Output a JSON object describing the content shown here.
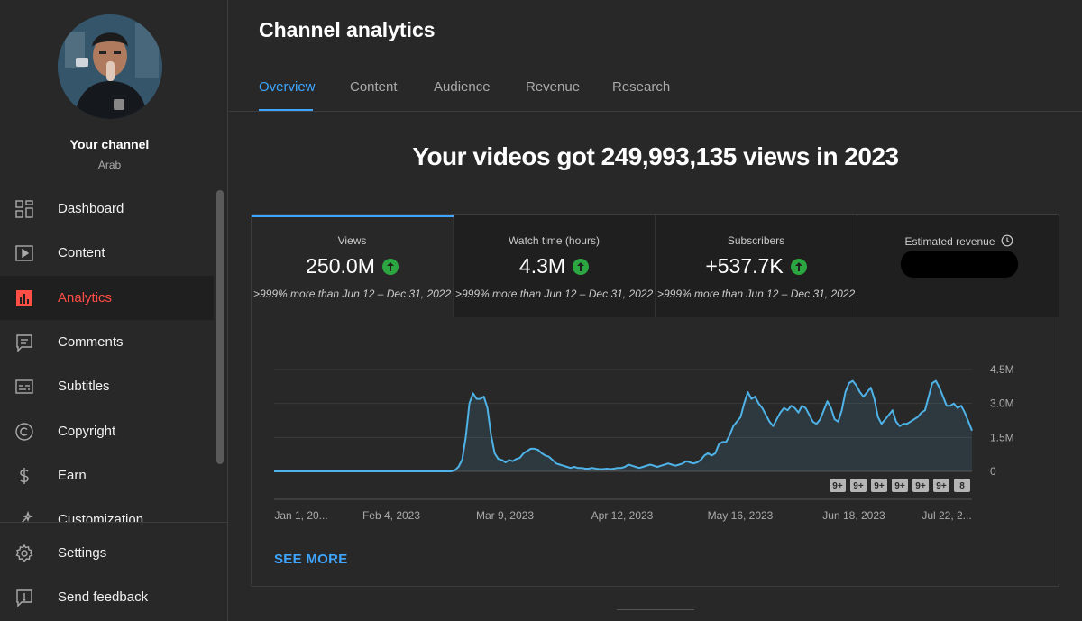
{
  "channel": {
    "name": "Your channel",
    "handle": "Arab"
  },
  "nav": {
    "items": [
      {
        "label": "Dashboard",
        "icon": "dashboard-icon"
      },
      {
        "label": "Content",
        "icon": "content-icon"
      },
      {
        "label": "Analytics",
        "icon": "analytics-icon",
        "active": true
      },
      {
        "label": "Comments",
        "icon": "comments-icon"
      },
      {
        "label": "Subtitles",
        "icon": "subtitles-icon"
      },
      {
        "label": "Copyright",
        "icon": "copyright-icon"
      },
      {
        "label": "Earn",
        "icon": "earn-icon"
      },
      {
        "label": "Customization",
        "icon": "customization-icon"
      }
    ],
    "bottom": [
      {
        "label": "Settings",
        "icon": "gear-icon"
      },
      {
        "label": "Send feedback",
        "icon": "feedback-icon"
      }
    ]
  },
  "page": {
    "title": "Channel analytics",
    "tabs": [
      "Overview",
      "Content",
      "Audience",
      "Revenue",
      "Research"
    ],
    "active_tab": "Overview",
    "headline": "Your videos got 249,993,135 views in 2023"
  },
  "metrics": [
    {
      "label": "Views",
      "value": "250.0M",
      "compare": ">999% more than Jun 12 – Dec 31, 2022",
      "trend": "up"
    },
    {
      "label": "Watch time (hours)",
      "value": "4.3M",
      "compare": ">999% more than Jun 12 – Dec 31, 2022",
      "trend": "up"
    },
    {
      "label": "Subscribers",
      "value": "+537.7K",
      "compare": ">999% more than Jun 12 – Dec 31, 2022",
      "trend": "up"
    },
    {
      "label": "Estimated revenue",
      "value": "",
      "compare": "",
      "redacted": true
    }
  ],
  "see_more": "SEE MORE",
  "colors": {
    "accent": "#3ea6ff",
    "active_nav": "#ff4e45",
    "up": "#2ba640",
    "line": "#4fb3e8"
  },
  "chart_data": {
    "type": "area",
    "title": "",
    "series": [
      {
        "values": [
          0,
          0,
          0,
          0,
          0,
          0,
          0,
          0,
          0,
          0,
          0,
          0,
          0,
          0,
          0,
          0,
          0,
          0,
          0,
          0,
          0,
          0,
          0,
          0,
          0,
          0,
          0,
          0,
          0,
          0,
          0,
          0,
          0,
          0,
          0,
          0,
          0,
          0,
          0,
          0,
          0,
          0,
          0,
          0,
          0,
          0,
          0,
          0,
          0,
          0,
          0.05,
          0.2,
          0.5,
          1.5,
          3.0,
          3.45,
          3.2,
          3.2,
          3.3,
          2.8,
          1.6,
          0.8,
          0.55,
          0.5,
          0.4,
          0.5,
          0.45,
          0.55,
          0.6,
          0.8,
          0.9,
          1.0,
          1.0,
          0.95,
          0.8,
          0.7,
          0.65,
          0.5,
          0.35,
          0.3,
          0.25,
          0.2,
          0.15,
          0.2,
          0.15,
          0.15,
          0.12,
          0.12,
          0.15,
          0.12,
          0.1,
          0.1,
          0.12,
          0.1,
          0.12,
          0.15,
          0.15,
          0.2,
          0.3,
          0.25,
          0.2,
          0.15,
          0.2,
          0.25,
          0.3,
          0.25,
          0.2,
          0.25,
          0.3,
          0.35,
          0.3,
          0.25,
          0.3,
          0.35,
          0.45,
          0.4,
          0.35,
          0.4,
          0.5,
          0.7,
          0.8,
          0.7,
          0.8,
          1.2,
          1.3,
          1.3,
          1.6,
          2.0,
          2.2,
          2.4,
          3.0,
          3.5,
          3.2,
          3.3,
          3.0,
          2.8,
          2.5,
          2.2,
          2.0,
          2.3,
          2.6,
          2.8,
          2.7,
          2.9,
          2.8,
          2.6,
          2.9,
          2.8,
          2.5,
          2.2,
          2.1,
          2.3,
          2.7,
          3.1,
          2.8,
          2.3,
          2.2,
          2.7,
          3.5,
          3.9,
          4.0,
          3.8,
          3.5,
          3.3,
          3.5,
          3.7,
          3.2,
          2.4,
          2.1,
          2.3,
          2.5,
          2.7,
          2.2,
          2.0,
          2.1,
          2.1,
          2.2,
          2.3,
          2.4,
          2.6,
          2.7,
          3.3,
          3.9,
          4.0,
          3.7,
          3.3,
          2.9,
          2.9,
          3.0,
          2.8,
          2.9,
          2.6,
          2.2,
          1.8
        ]
      }
    ],
    "x_tick_labels": [
      "Jan 1, 20...",
      "Feb 4, 2023",
      "Mar 9, 2023",
      "Apr 12, 2023",
      "May 16, 2023",
      "Jun 18, 2023",
      "Jul 22, 2..."
    ],
    "y_tick_labels": [
      "0",
      "1.5M",
      "3.0M",
      "4.5M"
    ],
    "y_unit": "millions of views",
    "ylim": [
      0,
      4.5
    ],
    "grid": true,
    "event_markers": [
      "9+",
      "9+",
      "9+",
      "9+",
      "9+",
      "9+",
      "8"
    ]
  }
}
